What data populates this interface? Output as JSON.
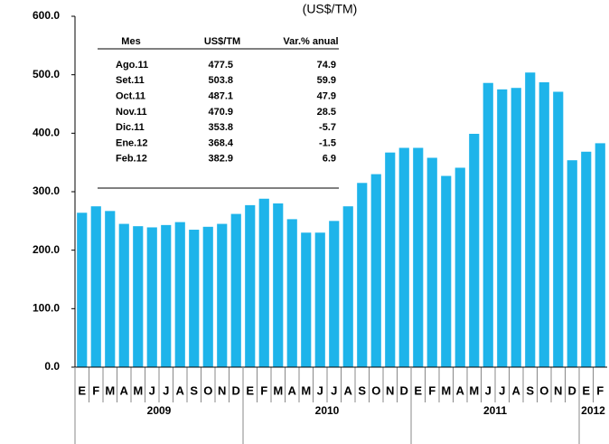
{
  "chart_data": {
    "type": "bar",
    "subtitle": "(US$/TM)",
    "categories": [
      "E",
      "F",
      "M",
      "A",
      "M",
      "J",
      "J",
      "A",
      "S",
      "O",
      "N",
      "D",
      "E",
      "F",
      "M",
      "A",
      "M",
      "J",
      "J",
      "A",
      "S",
      "O",
      "N",
      "D",
      "E",
      "F",
      "M",
      "A",
      "M",
      "J",
      "J",
      "A",
      "S",
      "O",
      "N",
      "D",
      "E",
      "F"
    ],
    "years": [
      "2009",
      "2010",
      "2011",
      "2012"
    ],
    "values": [
      264,
      275,
      267,
      245,
      241,
      239,
      243,
      248,
      235,
      240,
      245,
      262,
      277,
      288,
      280,
      253,
      230,
      230,
      250,
      275,
      315,
      330,
      367,
      375,
      375,
      358,
      327,
      341,
      399,
      486,
      475,
      477.5,
      503.8,
      487.1,
      470.9,
      353.8,
      368.4,
      382.9
    ],
    "color": "#1eb4ea",
    "ylim": [
      0,
      600
    ],
    "yticks": [
      {
        "value": 0,
        "label": "0.0"
      },
      {
        "value": 100,
        "label": "100.0"
      },
      {
        "value": 200,
        "label": "200.0"
      },
      {
        "value": 300,
        "label": "300.0"
      },
      {
        "value": 400,
        "label": "400.0"
      },
      {
        "value": 500,
        "label": "500.0"
      },
      {
        "value": 600,
        "label": "600.0"
      }
    ],
    "table": {
      "header": [
        "Mes",
        "US$/TM",
        "Var.% anual"
      ],
      "rows": [
        [
          "Ago.11",
          "477.5",
          "74.9"
        ],
        [
          "Set.11",
          "503.8",
          "59.9"
        ],
        [
          "Oct.11",
          "487.1",
          "47.9"
        ],
        [
          "Nov.11",
          "470.9",
          "28.5"
        ],
        [
          "Dic.11",
          "353.8",
          "-5.7"
        ],
        [
          "Ene.12",
          "368.4",
          "-1.5"
        ],
        [
          "Feb.12",
          "382.9",
          "6.9"
        ]
      ]
    }
  }
}
